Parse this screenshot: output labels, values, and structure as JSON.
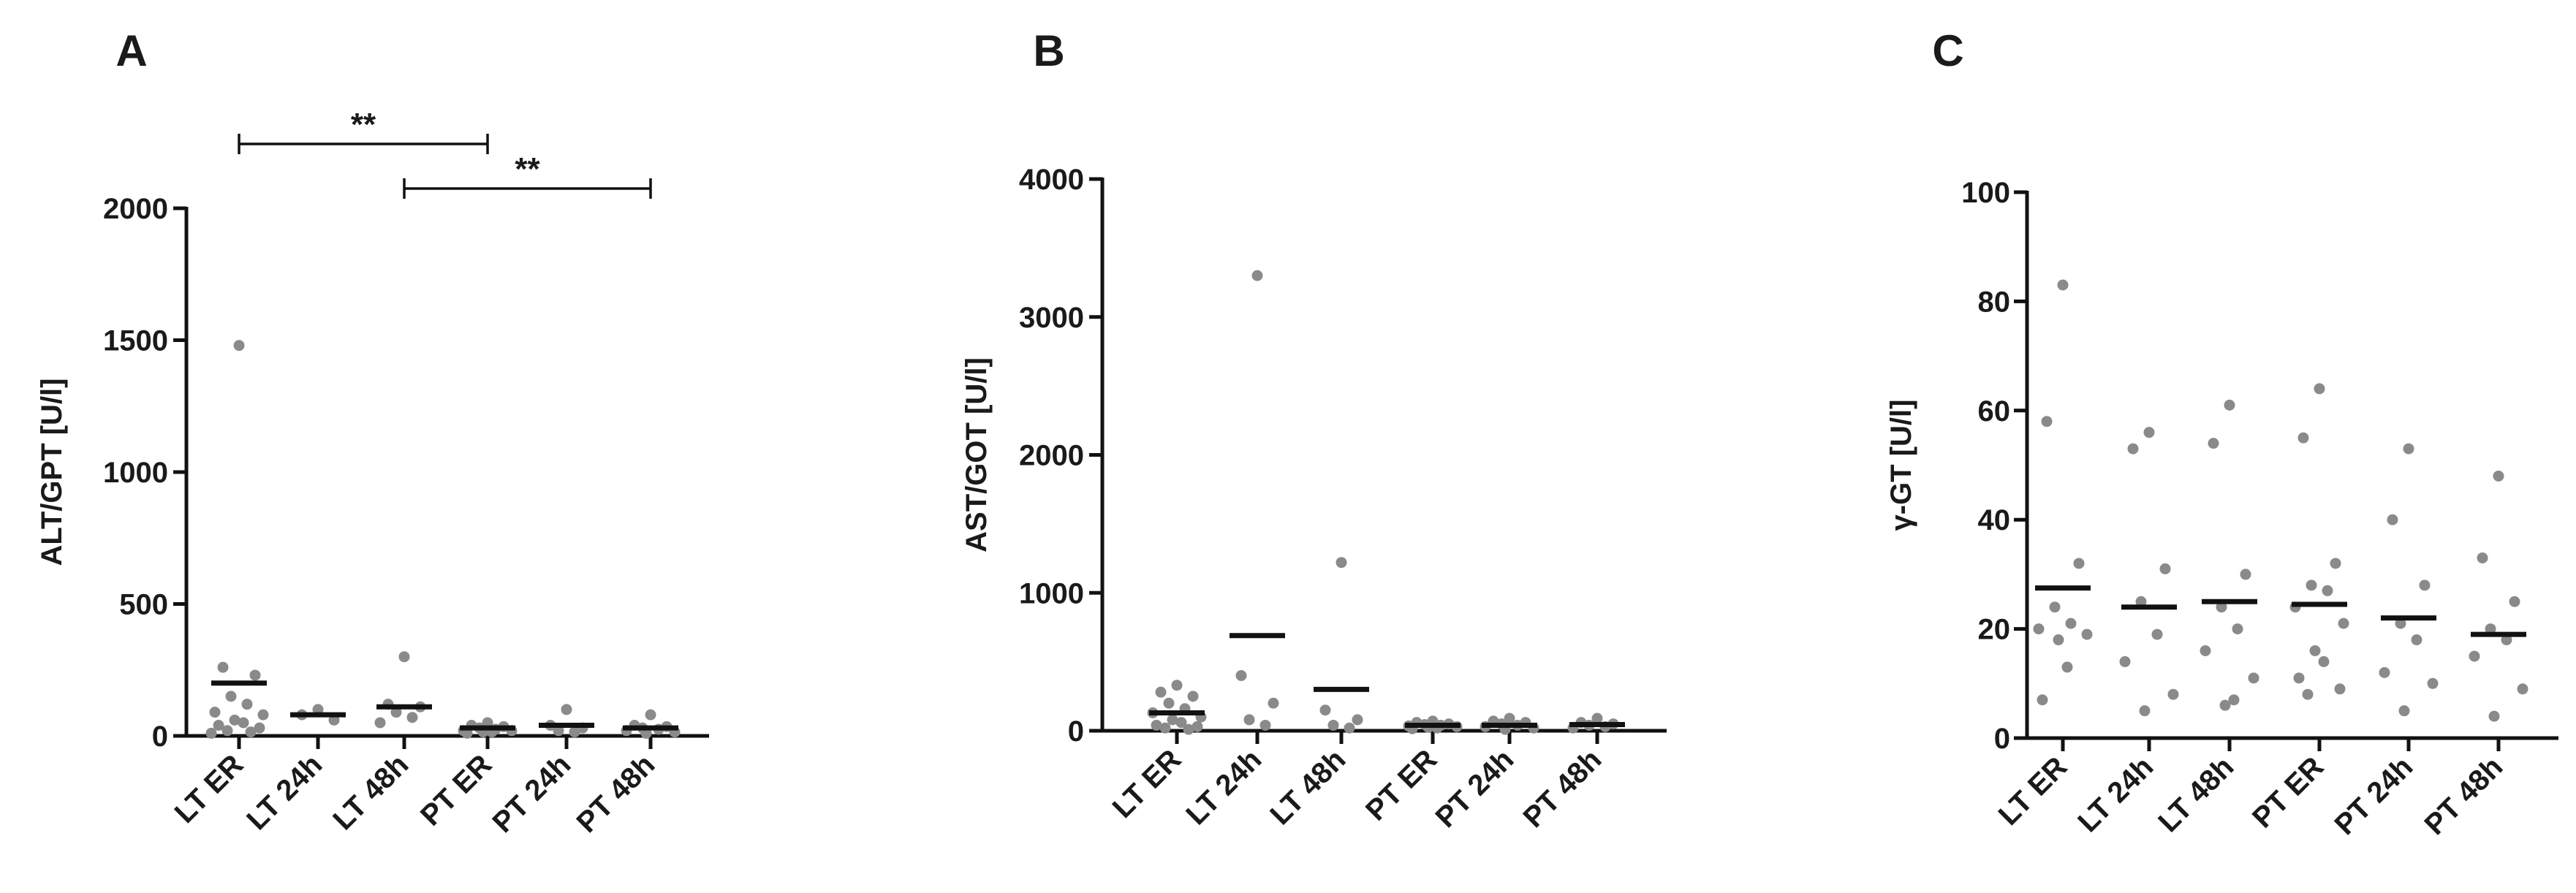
{
  "chart_data": [
    {
      "type": "scatter",
      "panel": "A",
      "ylabel": "ALT/GPT [U/l]",
      "ylim": [
        0,
        2000
      ],
      "yticks": [
        0,
        500,
        1000,
        1500,
        2000
      ],
      "categories": [
        "LT ER",
        "LT 24h",
        "LT 48h",
        "PT ER",
        "PT 24h",
        "PT 48h"
      ],
      "points": [
        [
          1480,
          260,
          230,
          150,
          120,
          90,
          80,
          60,
          50,
          40,
          30,
          20,
          15,
          10
        ],
        [
          100,
          80,
          60
        ],
        [
          300,
          120,
          110,
          90,
          70,
          50
        ],
        [
          50,
          40,
          35,
          30,
          25,
          20,
          20,
          15,
          15,
          10
        ],
        [
          100,
          40,
          30,
          20,
          15
        ],
        [
          80,
          40,
          35,
          30,
          25,
          20,
          15,
          10
        ]
      ],
      "means": [
        200,
        80,
        110,
        30,
        40,
        30
      ],
      "significance": [
        {
          "from": "LT ER",
          "to": "PT ER",
          "label": "**"
        },
        {
          "from": "LT 48h",
          "to": "PT 48h",
          "label": "**"
        }
      ]
    },
    {
      "type": "scatter",
      "panel": "B",
      "ylabel": "AST/GOT [U/l]",
      "ylim": [
        0,
        4000
      ],
      "yticks": [
        0,
        1000,
        2000,
        3000,
        4000
      ],
      "categories": [
        "LT ER",
        "LT 24h",
        "LT 48h",
        "PT ER",
        "PT 24h",
        "PT 48h"
      ],
      "points": [
        [
          330,
          280,
          250,
          200,
          160,
          130,
          100,
          80,
          60,
          40,
          30,
          20,
          10
        ],
        [
          3300,
          400,
          200,
          80,
          40
        ],
        [
          1220,
          150,
          80,
          40,
          20
        ],
        [
          70,
          60,
          50,
          45,
          40,
          35,
          30,
          25,
          20,
          15
        ],
        [
          90,
          70,
          60,
          50,
          40,
          30,
          20,
          10
        ],
        [
          90,
          60,
          50,
          40,
          30,
          20
        ]
      ],
      "means": [
        130,
        690,
        300,
        40,
        40,
        45
      ]
    },
    {
      "type": "scatter",
      "panel": "C",
      "ylabel": "γ-GT [U/l]",
      "ylim": [
        0,
        100
      ],
      "yticks": [
        0,
        20,
        40,
        60,
        80,
        100
      ],
      "categories": [
        "LT ER",
        "LT 24h",
        "LT 48h",
        "PT ER",
        "PT 24h",
        "PT 48h"
      ],
      "points": [
        [
          83,
          58,
          32,
          24,
          21,
          20,
          19,
          18,
          13,
          7
        ],
        [
          56,
          53,
          31,
          25,
          19,
          14,
          8,
          5
        ],
        [
          61,
          54,
          30,
          24,
          20,
          16,
          11,
          6,
          7
        ],
        [
          64,
          55,
          32,
          28,
          27,
          24,
          21,
          16,
          14,
          11,
          9,
          8
        ],
        [
          53,
          40,
          28,
          21,
          18,
          12,
          10,
          5
        ],
        [
          48,
          33,
          25,
          20,
          18,
          15,
          9,
          4
        ]
      ],
      "means": [
        27.5,
        24,
        25,
        24.5,
        22,
        19
      ]
    }
  ]
}
